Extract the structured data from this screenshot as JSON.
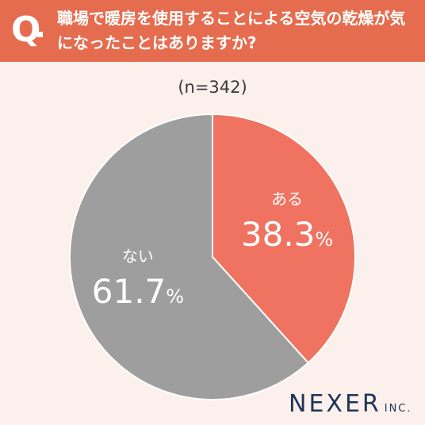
{
  "header": {
    "q_mark": "Q",
    "question": "職場で暖房を使用することによる空気の乾燥が気になったことはありますか?"
  },
  "sample_size": "(n=342)",
  "brand": {
    "name": "NEXER",
    "suffix": "INC."
  },
  "colors": {
    "header": "#e56c4e",
    "background": "#fbf0ec",
    "yes_slice": "#ef7360",
    "no_slice": "#9e9e9e",
    "brand": "#1d3557"
  },
  "chart_data": {
    "type": "pie",
    "title": "",
    "slices": [
      {
        "label": "ある",
        "value": 38.3,
        "display": "38.3",
        "unit": "%"
      },
      {
        "label": "ない",
        "value": 61.7,
        "display": "61.7",
        "unit": "%"
      }
    ]
  }
}
